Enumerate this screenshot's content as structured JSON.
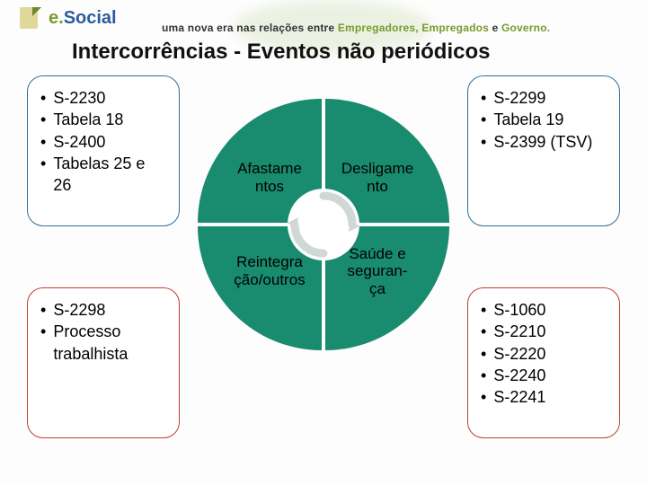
{
  "logo": {
    "e_text": "e.",
    "social_text": "Social",
    "e_color": "#7a9a2e",
    "social_color": "#2c5aa0",
    "icon_page_color": "#e0d79a",
    "icon_fold_color": "#6a8a28",
    "bar_color": "#7aa23a",
    "brush_color": "#9fbf6a",
    "font_size": 20
  },
  "tagline": {
    "prefix": "uma nova era nas relações entre ",
    "empregadores": "Empregadores, ",
    "empregados": "Empregados ",
    "conj": "e ",
    "governo": "Governo.",
    "color_dark": "#333333",
    "color_emp1": "#7a9a2e",
    "color_emp2": "#7a9a2e",
    "color_gov": "#7a9a2e"
  },
  "title": "Intercorrências - Eventos não periódicos",
  "boxes": {
    "tl": {
      "border": "#2f6f9c",
      "items": [
        "S-2230",
        "Tabela 18",
        "S-2400",
        "Tabelas 25 e 26"
      ]
    },
    "tr": {
      "border": "#2f6f9c",
      "items": [
        "S-2299",
        "Tabela 19",
        "S-2399 (TSV)"
      ]
    },
    "bl": {
      "border": "#c23e2f",
      "items": [
        "S-2298",
        "Processo trabalhista"
      ]
    },
    "br": {
      "border": "#c23e2f",
      "items": [
        "S-1060",
        "S-2210",
        "S-2220",
        "S-2240",
        "S-2241"
      ]
    }
  },
  "circle": {
    "gap_color": "#ffffff",
    "quad_color": "#198b6f",
    "q_tl": "Afastamentos",
    "q_tr": "Desligamento",
    "q_bl": "Reintegração/outros",
    "q_br": "Saúde e segurança",
    "arrow_ring_color": "#ffffff",
    "arrow_stroke": "#cfd8d4"
  },
  "text_color": "#111111",
  "bullet_char": "•"
}
